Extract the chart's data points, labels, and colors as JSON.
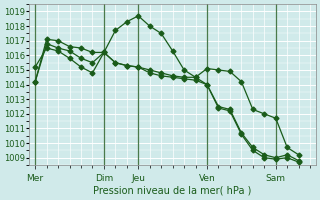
{
  "title": "",
  "xlabel": "Pression niveau de la mer( hPa )",
  "ylabel": "",
  "bg_color": "#d0eaea",
  "grid_color": "#b8d8d8",
  "line_color": "#1a5c1a",
  "tick_label_color": "#1a5c1a",
  "ylim": [
    1008.5,
    1019.5
  ],
  "yticks": [
    1009,
    1010,
    1011,
    1012,
    1013,
    1014,
    1015,
    1016,
    1017,
    1018,
    1019
  ],
  "xlim": [
    -0.5,
    24.5
  ],
  "day_positions": [
    0,
    6,
    9,
    15,
    21
  ],
  "day_labels": [
    "Mer",
    "Dim",
    "Jeu",
    "Ven",
    "Sam"
  ],
  "vline_positions": [
    0,
    6,
    9,
    15,
    21
  ],
  "series1_x": [
    0,
    1,
    2,
    3,
    4,
    5,
    6,
    7,
    8,
    9,
    10,
    11,
    12,
    13,
    14,
    15,
    16,
    17,
    18,
    19,
    20,
    21,
    22,
    23
  ],
  "series1_y": [
    1014.2,
    1017.1,
    1017.0,
    1016.6,
    1016.5,
    1016.2,
    1016.2,
    1015.5,
    1015.3,
    1015.2,
    1015.0,
    1014.8,
    1014.6,
    1014.5,
    1014.5,
    1014.0,
    1012.5,
    1012.3,
    1010.7,
    1009.7,
    1009.2,
    1009.0,
    1009.2,
    1008.8
  ],
  "series2_x": [
    0,
    1,
    2,
    3,
    4,
    5,
    6,
    7,
    8,
    9,
    10,
    11,
    12,
    13,
    14,
    15,
    16,
    17,
    18,
    19,
    20,
    21,
    22,
    23
  ],
  "series2_y": [
    1015.2,
    1016.5,
    1016.3,
    1015.8,
    1015.2,
    1014.8,
    1016.2,
    1017.7,
    1018.3,
    1018.7,
    1018.0,
    1017.5,
    1016.3,
    1015.0,
    1014.5,
    1015.1,
    1015.0,
    1014.9,
    1014.2,
    1012.3,
    1012.0,
    1011.7,
    1009.7,
    1009.2
  ],
  "series3_x": [
    0,
    1,
    2,
    3,
    4,
    5,
    6,
    7,
    8,
    9,
    10,
    11,
    12,
    13,
    14,
    15,
    16,
    17,
    18,
    19,
    20,
    21,
    22,
    23
  ],
  "series3_y": [
    1014.2,
    1016.8,
    1016.5,
    1016.3,
    1015.8,
    1015.5,
    1016.2,
    1015.5,
    1015.3,
    1015.2,
    1014.8,
    1014.6,
    1014.5,
    1014.4,
    1014.3,
    1014.0,
    1012.4,
    1012.2,
    1010.6,
    1009.5,
    1009.0,
    1008.9,
    1009.0,
    1008.7
  ],
  "figsize": [
    3.2,
    2.0
  ],
  "dpi": 100
}
